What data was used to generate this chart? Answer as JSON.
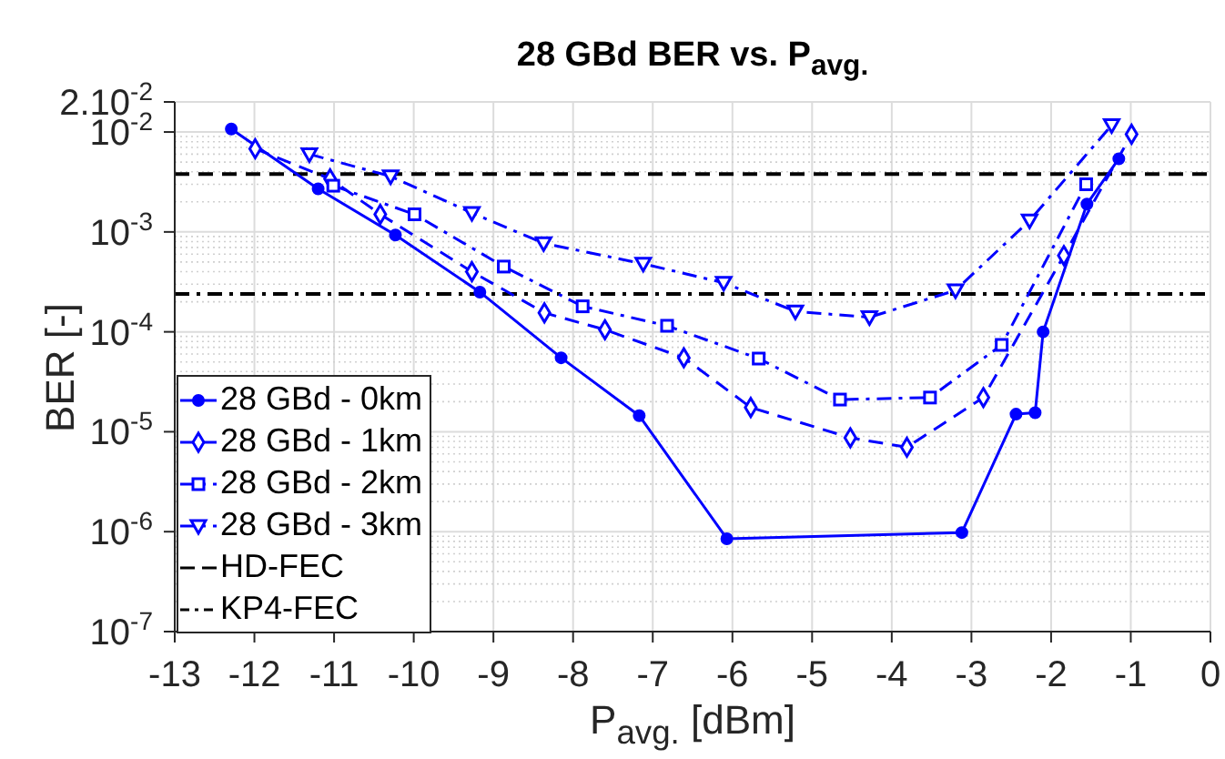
{
  "chart_data": {
    "type": "line",
    "title": "28 GBd BER vs. P$_{avg.}$",
    "xlabel": "P$_{avg.}$ [dBm]",
    "ylabel": "BER [-]",
    "series": [
      {
        "name": "28 GBd - 0km",
        "color": "#0000ff",
        "marker": "circle",
        "line_style": "solid",
        "x": [
          -12.29,
          -11.2,
          -10.23,
          -9.17,
          -8.15,
          -7.17,
          -6.07,
          -3.12,
          -2.44,
          -2.2,
          -2.1,
          -1.55,
          -1.15
        ],
        "values": [
          0.0107,
          0.0027,
          0.00093,
          0.00025,
          5.5e-05,
          1.45e-05,
          8.5e-07,
          9.8e-07,
          1.5e-05,
          1.55e-05,
          0.0001,
          0.0019,
          0.0054
        ]
      },
      {
        "name": "28 GBd - 1km",
        "color": "#0000ff",
        "marker": "diamond",
        "line_style": "dashed",
        "x": [
          -11.99,
          -11.05,
          -10.42,
          -9.27,
          -8.36,
          -7.6,
          -6.61,
          -5.77,
          -4.52,
          -3.81,
          -2.85,
          -1.84,
          -0.99
        ],
        "values": [
          0.0068,
          0.0034,
          0.0015,
          0.0004,
          0.000155,
          0.000105,
          5.5e-05,
          1.75e-05,
          8.7e-06,
          7e-06,
          2.2e-05,
          0.00058,
          0.0095
        ]
      },
      {
        "name": "28 GBd - 2km",
        "color": "#0000ff",
        "marker": "square",
        "line_style": "dashdot",
        "x": [
          -11.01,
          -9.99,
          -8.87,
          -7.88,
          -6.82,
          -5.67,
          -4.65,
          -3.52,
          -2.62,
          -1.56
        ],
        "values": [
          0.0029,
          0.0015,
          0.00045,
          0.00018,
          0.000115,
          5.4e-05,
          2.1e-05,
          2.2e-05,
          7.4e-05,
          0.003
        ]
      },
      {
        "name": "28 GBd - 3km",
        "color": "#0000ff",
        "marker": "triangle",
        "line_style": "dashdot",
        "x": [
          -11.31,
          -10.29,
          -9.27,
          -8.37,
          -7.12,
          -6.11,
          -5.21,
          -4.28,
          -3.2,
          -2.27,
          -1.24
        ],
        "values": [
          0.006,
          0.0036,
          0.00155,
          0.00077,
          0.00048,
          0.00031,
          0.00016,
          0.00014,
          0.00026,
          0.0013,
          0.0117
        ]
      }
    ],
    "ref_lines": [
      {
        "axis": "y",
        "value": 0.0038,
        "label": "HD-FEC",
        "color": "#000000",
        "line_style": "dashed"
      },
      {
        "axis": "y",
        "value": 0.00024,
        "label": "KP4-FEC",
        "color": "#000000",
        "line_style": "dashdot"
      }
    ],
    "log": "y",
    "grid": true,
    "legend": "bottom left",
    "xlim": [
      -13,
      0
    ],
    "xticks": [
      -13,
      -12,
      -11,
      -10,
      -9,
      -8,
      -7,
      -6,
      -5,
      -4,
      -3,
      -2,
      -1,
      0
    ],
    "ylim": [
      1e-07,
      0.02
    ],
    "yticks": [
      {
        "value": 1e-07,
        "label": "10$^{-7}$"
      },
      {
        "value": 1e-06,
        "label": "10$^{-6}$"
      },
      {
        "value": 1e-05,
        "label": "10$^{-5}$"
      },
      {
        "value": 0.0001,
        "label": "10$^{-4}$"
      },
      {
        "value": 0.001,
        "label": "10$^{-3}$"
      },
      {
        "value": 0.01,
        "label": "10$^{-2}$"
      },
      {
        "value": 0.02,
        "label": "2.10$^{-2}$"
      }
    ]
  }
}
